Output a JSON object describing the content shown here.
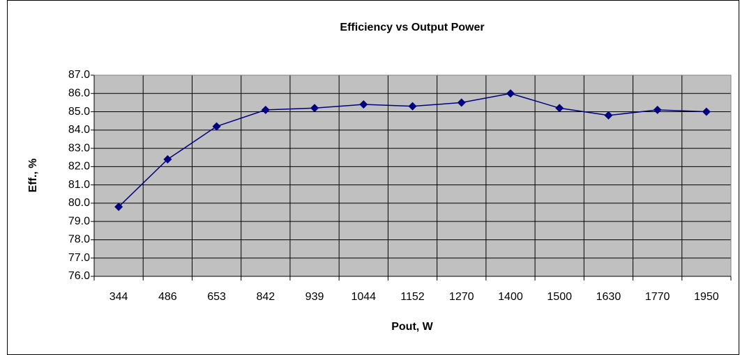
{
  "chart_data": {
    "type": "line",
    "title": "Efficiency vs Output Power",
    "x_label": "Pout, W",
    "y_label": "Eff., %",
    "categories": [
      "344",
      "486",
      "653",
      "842",
      "939",
      "1044",
      "1152",
      "1270",
      "1400",
      "1500",
      "1630",
      "1770",
      "1950"
    ],
    "values": [
      79.8,
      82.4,
      84.2,
      85.1,
      85.2,
      85.4,
      85.3,
      85.5,
      86.0,
      85.2,
      84.8,
      85.1,
      85.0
    ],
    "color": "#000080",
    "ylim": [
      76,
      87
    ],
    "yticks": [
      {
        "value": 76,
        "label": "76.0"
      },
      {
        "value": 77,
        "label": "77.0"
      },
      {
        "value": 78,
        "label": "78.0"
      },
      {
        "value": 79,
        "label": "79.0"
      },
      {
        "value": 80,
        "label": "80.0"
      },
      {
        "value": 81,
        "label": "81.0"
      },
      {
        "value": 82,
        "label": "82.0"
      },
      {
        "value": 83,
        "label": "83.0"
      },
      {
        "value": 84,
        "label": "84.0"
      },
      {
        "value": 85,
        "label": "85.0"
      },
      {
        "value": 86,
        "label": "86.0"
      },
      {
        "value": 87,
        "label": "87.0"
      }
    ],
    "grid": true
  }
}
